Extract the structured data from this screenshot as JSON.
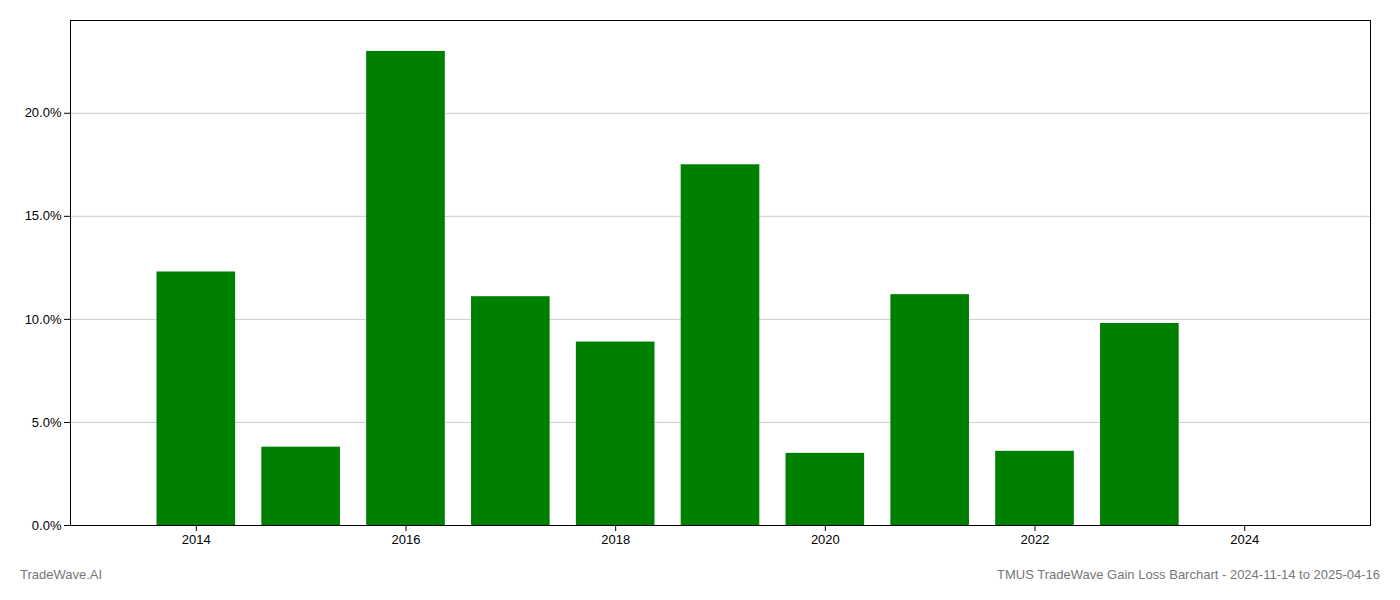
{
  "chart_data": {
    "type": "bar",
    "x": [
      2014,
      2015,
      2016,
      2017,
      2018,
      2019,
      2020,
      2021,
      2022,
      2023
    ],
    "values": [
      0.123,
      0.038,
      0.23,
      0.111,
      0.089,
      0.175,
      0.035,
      0.112,
      0.036,
      0.098
    ],
    "color": "#008000",
    "xlim": [
      2012.8,
      2025.2
    ],
    "xticks": [
      2014,
      2016,
      2018,
      2020,
      2022,
      2024
    ],
    "ylim": [
      0,
      0.245
    ],
    "yticks": [
      {
        "value": 0.0,
        "label": "0.0%"
      },
      {
        "value": 0.05,
        "label": "5.0%"
      },
      {
        "value": 0.1,
        "label": "10.0%"
      },
      {
        "value": 0.15,
        "label": "15.0%"
      },
      {
        "value": 0.2,
        "label": "20.0%"
      }
    ],
    "grid": true,
    "annotations": [
      "TradeWave.AI",
      "TMUS TradeWave Gain Loss Barchart - 2024-11-14 to 2025-04-16"
    ]
  }
}
